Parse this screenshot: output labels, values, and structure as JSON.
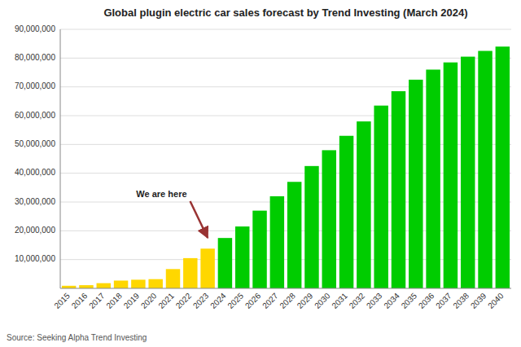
{
  "chart_data": {
    "type": "bar",
    "title": "Global plugin electric car sales forecast by Trend Investing (March 2024)",
    "source": "Source: Seeking Alpha Trend Investing",
    "categories": [
      "2015",
      "2016",
      "2017",
      "2018",
      "2019",
      "2020",
      "2021",
      "2022",
      "2023",
      "2024",
      "2025",
      "2026",
      "2027",
      "2028",
      "2029",
      "2030",
      "2031",
      "2032",
      "2033",
      "2034",
      "2035",
      "2036",
      "2037",
      "2038",
      "2039",
      "2040"
    ],
    "values": [
      900000,
      1100000,
      1800000,
      2700000,
      3000000,
      3200000,
      6700000,
      10500000,
      13800000,
      17500000,
      21500000,
      27000000,
      32000000,
      37000000,
      42500000,
      48000000,
      53000000,
      58000000,
      63500000,
      68500000,
      72500000,
      76000000,
      78500000,
      80500000,
      82500000,
      84000000
    ],
    "colors": [
      "#FFD700",
      "#FFD700",
      "#FFD700",
      "#FFD700",
      "#FFD700",
      "#FFD700",
      "#FFD700",
      "#FFD700",
      "#FFD700",
      "#00CC00",
      "#00CC00",
      "#00CC00",
      "#00CC00",
      "#00CC00",
      "#00CC00",
      "#00CC00",
      "#00CC00",
      "#00CC00",
      "#00CC00",
      "#00CC00",
      "#00CC00",
      "#00CC00",
      "#00CC00",
      "#00CC00",
      "#00CC00",
      "#00CC00"
    ],
    "annotations": [
      {
        "text": "We are here",
        "x": "2023",
        "y": 17000000
      }
    ],
    "ylim": [
      0,
      90000000
    ],
    "yticks": [
      {
        "value": 10000000,
        "label": "10,000,000"
      },
      {
        "value": 20000000,
        "label": "20,000,000"
      },
      {
        "value": 30000000,
        "label": "30,000,000"
      },
      {
        "value": 40000000,
        "label": "40,000,000"
      },
      {
        "value": 50000000,
        "label": "50,000,000"
      },
      {
        "value": 60000000,
        "label": "60,000,000"
      },
      {
        "value": 70000000,
        "label": "70,000,000"
      },
      {
        "value": 80000000,
        "label": "80,000,000"
      },
      {
        "value": 90000000,
        "label": "90,000,000"
      }
    ],
    "grid": true
  }
}
